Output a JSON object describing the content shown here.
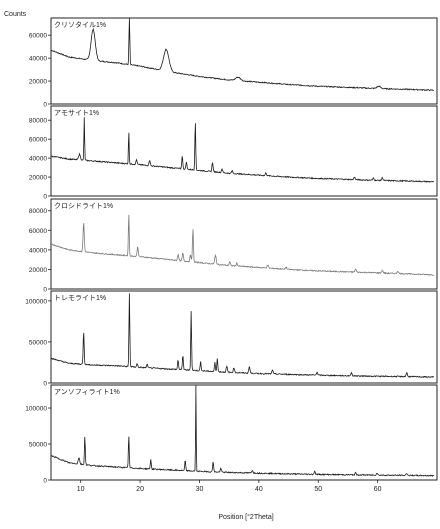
{
  "chart_data": {
    "type": "line",
    "ylabel": "Counts",
    "xlabel": "Position [°2Theta]",
    "xlim": [
      5,
      70
    ],
    "x_ticks": [
      10,
      20,
      30,
      40,
      50,
      60
    ],
    "grid": false,
    "panels": [
      {
        "name": "クリソタイル1%",
        "ylim": [
          0,
          75000
        ],
        "y_ticks": [
          20000,
          40000,
          60000
        ],
        "tick_labels": [
          "20000",
          "40000",
          "60000"
        ],
        "color": "#1a1a1a",
        "baseline": [
          [
            5,
            47000
          ],
          [
            8,
            41000
          ],
          [
            12,
            38000
          ],
          [
            16,
            36000
          ],
          [
            20,
            33000
          ],
          [
            25,
            28000
          ],
          [
            30,
            24000
          ],
          [
            35,
            21000
          ],
          [
            40,
            19000
          ],
          [
            45,
            17000
          ],
          [
            50,
            15500
          ],
          [
            55,
            14500
          ],
          [
            60,
            13500
          ],
          [
            65,
            12800
          ],
          [
            69.5,
            12000
          ]
        ],
        "peaks": [
          [
            12.1,
            27000,
            0.35
          ],
          [
            18.2,
            42000,
            0.07
          ],
          [
            24.4,
            19000,
            0.45
          ],
          [
            36.5,
            3000,
            0.4
          ],
          [
            60.2,
            2000,
            0.3
          ]
        ]
      },
      {
        "name": "アモサイト1%",
        "ylim": [
          0,
          95000
        ],
        "y_ticks": [
          20000,
          40000,
          60000,
          80000
        ],
        "tick_labels": [
          "20000",
          "40000",
          "60000",
          "80000"
        ],
        "color": "#1a1a1a",
        "baseline": [
          [
            5,
            42000
          ],
          [
            8,
            39000
          ],
          [
            12,
            37000
          ],
          [
            16,
            35000
          ],
          [
            20,
            33000
          ],
          [
            25,
            30000
          ],
          [
            30,
            27000
          ],
          [
            35,
            24000
          ],
          [
            40,
            22000
          ],
          [
            45,
            20000
          ],
          [
            50,
            18500
          ],
          [
            55,
            17500
          ],
          [
            60,
            16500
          ],
          [
            65,
            15800
          ],
          [
            69.5,
            15000
          ]
        ],
        "peaks": [
          [
            9.8,
            6000,
            0.15
          ],
          [
            10.6,
            45000,
            0.06
          ],
          [
            18.1,
            35000,
            0.06
          ],
          [
            19.4,
            5000,
            0.1
          ],
          [
            21.6,
            6000,
            0.1
          ],
          [
            27.1,
            14000,
            0.08
          ],
          [
            27.8,
            8000,
            0.08
          ],
          [
            29.3,
            52000,
            0.07
          ],
          [
            32.2,
            10000,
            0.09
          ],
          [
            33.8,
            4000,
            0.1
          ],
          [
            35.5,
            3000,
            0.1
          ],
          [
            41.2,
            3000,
            0.1
          ],
          [
            56.1,
            3000,
            0.1
          ],
          [
            59.3,
            2500,
            0.1
          ],
          [
            60.8,
            3000,
            0.1
          ]
        ]
      },
      {
        "name": "クロシドライト1%",
        "ylim": [
          0,
          92000
        ],
        "y_ticks": [
          20000,
          40000,
          60000,
          80000
        ],
        "tick_labels": [
          "20000",
          "40000",
          "60000",
          "80000"
        ],
        "color": "#7a7a7a",
        "baseline": [
          [
            5,
            46000
          ],
          [
            8,
            40000
          ],
          [
            12,
            37000
          ],
          [
            16,
            35000
          ],
          [
            20,
            33000
          ],
          [
            25,
            30000
          ],
          [
            30,
            27000
          ],
          [
            35,
            24000
          ],
          [
            40,
            22000
          ],
          [
            45,
            20000
          ],
          [
            50,
            18500
          ],
          [
            55,
            17500
          ],
          [
            60,
            16500
          ],
          [
            65,
            15500
          ],
          [
            69.5,
            14500
          ]
        ],
        "peaks": [
          [
            10.5,
            30000,
            0.1
          ],
          [
            18.1,
            44000,
            0.07
          ],
          [
            19.6,
            10000,
            0.1
          ],
          [
            26.4,
            6000,
            0.1
          ],
          [
            27.2,
            8000,
            0.1
          ],
          [
            28.5,
            7000,
            0.1
          ],
          [
            28.9,
            34000,
            0.08
          ],
          [
            32.7,
            9000,
            0.12
          ],
          [
            35.1,
            4000,
            0.1
          ],
          [
            36.3,
            3000,
            0.1
          ],
          [
            41.5,
            3000,
            0.12
          ],
          [
            44.6,
            2000,
            0.12
          ],
          [
            56.3,
            3000,
            0.12
          ],
          [
            60.8,
            2500,
            0.12
          ],
          [
            63.4,
            2500,
            0.12
          ]
        ]
      },
      {
        "name": "トレモライト1%",
        "ylim": [
          0,
          112000
        ],
        "y_ticks": [
          50000,
          100000
        ],
        "tick_labels": [
          "50000",
          "100000"
        ],
        "color": "#1a1a1a",
        "baseline": [
          [
            5,
            30000
          ],
          [
            8,
            24000
          ],
          [
            12,
            22000
          ],
          [
            16,
            21000
          ],
          [
            20,
            19000
          ],
          [
            25,
            17000
          ],
          [
            30,
            15000
          ],
          [
            35,
            13000
          ],
          [
            40,
            11500
          ],
          [
            45,
            10500
          ],
          [
            50,
            9500
          ],
          [
            55,
            8800
          ],
          [
            60,
            8200
          ],
          [
            65,
            7800
          ],
          [
            69.5,
            7200
          ]
        ],
        "peaks": [
          [
            10.5,
            40000,
            0.08
          ],
          [
            18.2,
            89000,
            0.07
          ],
          [
            19.5,
            4000,
            0.1
          ],
          [
            21.2,
            4000,
            0.1
          ],
          [
            26.4,
            12000,
            0.08
          ],
          [
            27.2,
            18000,
            0.08
          ],
          [
            28.6,
            72000,
            0.07
          ],
          [
            30.2,
            11000,
            0.08
          ],
          [
            32.6,
            11000,
            0.08
          ],
          [
            33.0,
            16000,
            0.08
          ],
          [
            34.6,
            7000,
            0.1
          ],
          [
            35.8,
            6000,
            0.1
          ],
          [
            38.4,
            8000,
            0.1
          ],
          [
            42.3,
            5000,
            0.1
          ],
          [
            49.8,
            4000,
            0.1
          ],
          [
            55.6,
            4000,
            0.1
          ],
          [
            64.9,
            5000,
            0.1
          ]
        ]
      },
      {
        "name": "アンソフィライト1%",
        "ylim": [
          0,
          132000
        ],
        "y_ticks": [
          50000,
          100000
        ],
        "tick_labels": [
          "50000",
          "100000"
        ],
        "color": "#1a1a1a",
        "baseline": [
          [
            5,
            34000
          ],
          [
            8,
            24000
          ],
          [
            12,
            20000
          ],
          [
            16,
            18000
          ],
          [
            20,
            16000
          ],
          [
            25,
            14000
          ],
          [
            30,
            12000
          ],
          [
            35,
            10500
          ],
          [
            40,
            9500
          ],
          [
            45,
            8500
          ],
          [
            50,
            7800
          ],
          [
            55,
            7200
          ],
          [
            60,
            6800
          ],
          [
            65,
            6400
          ],
          [
            69.5,
            6000
          ]
        ],
        "peaks": [
          [
            9.7,
            9000,
            0.12
          ],
          [
            10.7,
            40000,
            0.07
          ],
          [
            18.1,
            45000,
            0.07
          ],
          [
            21.8,
            13000,
            0.08
          ],
          [
            27.6,
            14000,
            0.08
          ],
          [
            29.4,
            121000,
            0.05
          ],
          [
            32.3,
            15000,
            0.08
          ],
          [
            33.6,
            5000,
            0.1
          ],
          [
            38.9,
            4000,
            0.1
          ],
          [
            49.4,
            4000,
            0.1
          ],
          [
            56.3,
            3000,
            0.1
          ],
          [
            59.9,
            3000,
            0.1
          ],
          [
            64.9,
            3000,
            0.1
          ]
        ]
      }
    ]
  }
}
